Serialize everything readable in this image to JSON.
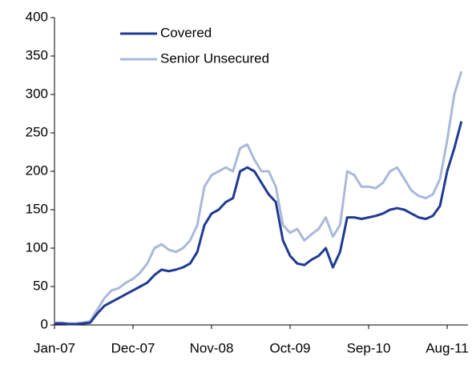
{
  "chart_data": {
    "type": "line",
    "categories": [
      "Jan-07",
      null,
      null,
      null,
      null,
      null,
      null,
      null,
      null,
      null,
      null,
      "Dec-07",
      null,
      null,
      null,
      null,
      null,
      null,
      null,
      null,
      null,
      null,
      "Nov-08",
      null,
      null,
      null,
      null,
      null,
      null,
      null,
      null,
      null,
      null,
      "Oct-09",
      null,
      null,
      null,
      null,
      null,
      null,
      null,
      null,
      null,
      null,
      "Sep-10",
      null,
      null,
      null,
      null,
      null,
      null,
      null,
      null,
      null,
      null,
      "Aug-11",
      null,
      null
    ],
    "series": [
      {
        "name": "Covered",
        "color": "#1f3a93",
        "values": [
          2,
          2,
          1,
          1,
          2,
          3,
          15,
          25,
          30,
          35,
          40,
          45,
          50,
          55,
          65,
          72,
          70,
          72,
          75,
          80,
          95,
          130,
          145,
          150,
          160,
          165,
          200,
          205,
          200,
          185,
          170,
          160,
          110,
          90,
          80,
          78,
          85,
          90,
          100,
          75,
          95,
          140,
          140,
          138,
          140,
          142,
          145,
          150,
          152,
          150,
          145,
          140,
          138,
          142,
          155,
          200,
          230,
          265
        ]
      },
      {
        "name": "Senior Unsecured",
        "color": "#a9b9d9",
        "values": [
          3,
          3,
          2,
          2,
          3,
          5,
          20,
          35,
          45,
          48,
          55,
          60,
          68,
          80,
          100,
          105,
          98,
          95,
          100,
          110,
          130,
          180,
          195,
          200,
          205,
          200,
          230,
          235,
          215,
          200,
          200,
          180,
          130,
          120,
          125,
          110,
          118,
          125,
          140,
          115,
          130,
          200,
          195,
          180,
          180,
          178,
          185,
          200,
          205,
          190,
          175,
          168,
          165,
          170,
          190,
          240,
          300,
          330
        ]
      }
    ],
    "ylim": [
      0,
      400
    ],
    "yticks": [
      0,
      50,
      100,
      150,
      200,
      250,
      300,
      350,
      400
    ],
    "grid": false,
    "legend": "top-left"
  }
}
